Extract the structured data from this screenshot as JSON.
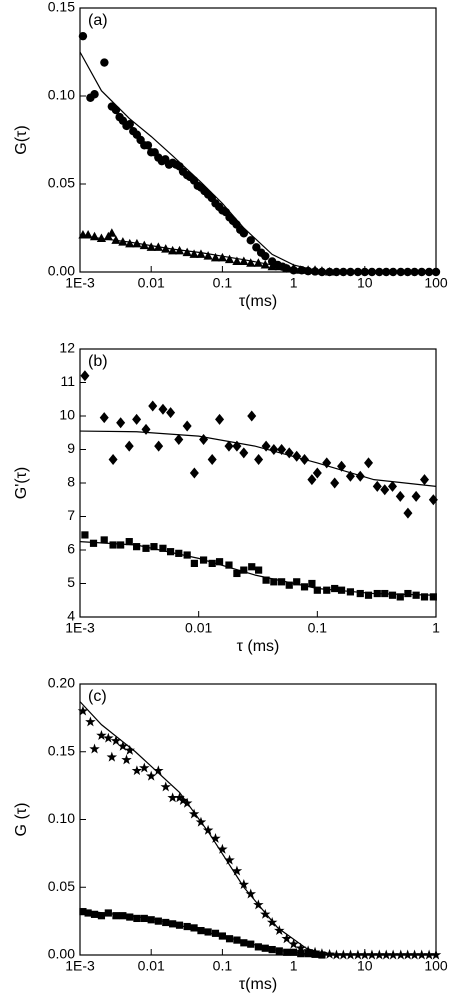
{
  "chart_data": [
    {
      "type": "scatter",
      "annotation": "(a)",
      "xlabel": "τ(ms)",
      "ylabel": "G(τ)",
      "xscale": "log",
      "xlim": [
        0.001,
        100
      ],
      "xticks": [
        {
          "value": 0.001,
          "label": "1E-3"
        },
        0.01,
        0.1,
        1,
        10,
        100
      ],
      "ylim": [
        0,
        0.15
      ],
      "yticks": [
        {
          "value": 0,
          "label": "0.00"
        },
        {
          "value": 0.05,
          "label": "0.05"
        },
        {
          "value": 0.1,
          "label": "0.10"
        },
        {
          "value": 0.15,
          "label": "0.15"
        }
      ],
      "series": [
        {
          "color": "#000000",
          "marker": "circle",
          "x": [
            0.0011,
            0.0014,
            0.0016,
            0.0022,
            0.0028,
            0.0032,
            0.0036,
            0.004,
            0.0045,
            0.005,
            0.0056,
            0.0063,
            0.0071,
            0.008,
            0.009,
            0.01,
            0.0112,
            0.0126,
            0.0141,
            0.0158,
            0.0178,
            0.02,
            0.0224,
            0.025,
            0.028,
            0.032,
            0.035,
            0.04,
            0.045,
            0.05,
            0.056,
            0.063,
            0.071,
            0.08,
            0.09,
            0.1,
            0.112,
            0.126,
            0.141,
            0.158,
            0.178,
            0.2,
            0.25,
            0.3,
            0.35,
            0.4,
            0.5,
            0.6,
            0.7,
            0.8,
            1,
            1.3,
            1.6,
            2,
            2.5,
            3.2,
            4,
            5,
            6.3,
            8,
            10,
            12.6,
            16,
            20,
            25,
            32,
            40,
            50,
            63,
            80,
            100
          ],
          "values": [
            0.134,
            0.099,
            0.101,
            0.119,
            0.094,
            0.092,
            0.088,
            0.086,
            0.083,
            0.084,
            0.08,
            0.078,
            0.075,
            0.072,
            0.072,
            0.068,
            0.068,
            0.065,
            0.063,
            0.064,
            0.061,
            0.062,
            0.061,
            0.06,
            0.057,
            0.055,
            0.054,
            0.052,
            0.049,
            0.048,
            0.046,
            0.044,
            0.042,
            0.039,
            0.037,
            0.035,
            0.034,
            0.031,
            0.029,
            0.027,
            0.024,
            0.022,
            0.018,
            0.014,
            0.011,
            0.009,
            0.006,
            0.004,
            0.003,
            0.002,
            0.001,
            0.001,
            0.0005,
            0.0003,
            0,
            0,
            0,
            0,
            0,
            0,
            0,
            0,
            0,
            0,
            0,
            0,
            0,
            0,
            0,
            0,
            0
          ]
        },
        {
          "color": "#000000",
          "marker": "triangle",
          "x": [
            0.0011,
            0.0013,
            0.0016,
            0.002,
            0.0025,
            0.0028,
            0.0032,
            0.004,
            0.005,
            0.0063,
            0.008,
            0.01,
            0.0126,
            0.016,
            0.02,
            0.025,
            0.032,
            0.04,
            0.05,
            0.063,
            0.08,
            0.1,
            0.126,
            0.16,
            0.2,
            0.25,
            0.32,
            0.4,
            0.5,
            0.63,
            0.8,
            1,
            1.26,
            1.6,
            2,
            2.5,
            3.2
          ],
          "values": [
            0.021,
            0.021,
            0.02,
            0.019,
            0.02,
            0.022,
            0.018,
            0.017,
            0.016,
            0.016,
            0.015,
            0.014,
            0.014,
            0.013,
            0.012,
            0.012,
            0.011,
            0.01,
            0.01,
            0.009,
            0.008,
            0.008,
            0.007,
            0.006,
            0.006,
            0.005,
            0.005,
            0.004,
            0.003,
            0.003,
            0.002,
            0.002,
            0.001,
            0.001,
            0.001,
            0.0005,
            0
          ]
        },
        {
          "color": "#000000",
          "marker": "none",
          "line": true,
          "x": [
            0.001,
            0.002,
            0.005,
            0.01,
            0.02,
            0.05,
            0.1,
            0.2,
            0.5,
            1,
            2,
            5,
            10,
            100
          ],
          "values": [
            0.125,
            0.103,
            0.087,
            0.077,
            0.066,
            0.051,
            0.039,
            0.025,
            0.01,
            0.004,
            0.001,
            0,
            0,
            0
          ]
        },
        {
          "color": "#000000",
          "marker": "none",
          "line": true,
          "x": [
            0.001,
            0.002,
            0.005,
            0.01,
            0.02,
            0.05,
            0.1,
            0.2,
            0.5,
            1,
            2,
            5,
            10,
            100
          ],
          "values": [
            0.021,
            0.019,
            0.017,
            0.015,
            0.013,
            0.011,
            0.009,
            0.007,
            0.004,
            0.002,
            0.001,
            0,
            0,
            0
          ]
        }
      ]
    },
    {
      "type": "scatter",
      "annotation": "(b)",
      "xlabel": "τ (ms)",
      "ylabel": "G'(τ)",
      "xscale": "log",
      "xlim": [
        0.001,
        1
      ],
      "xticks": [
        {
          "value": 0.001,
          "label": "1E-3"
        },
        0.01,
        0.1,
        1
      ],
      "ylim": [
        4,
        12
      ],
      "yticks": [
        4,
        5,
        6,
        7,
        8,
        9,
        10,
        11,
        12
      ],
      "series": [
        {
          "color": "#000000",
          "marker": "diamond",
          "x": [
            0.0011,
            0.0016,
            0.0019,
            0.0022,
            0.0026,
            0.003,
            0.0036,
            0.0041,
            0.0046,
            0.005,
            0.0058,
            0.0068,
            0.008,
            0.0092,
            0.011,
            0.013,
            0.015,
            0.018,
            0.021,
            0.024,
            0.028,
            0.032,
            0.037,
            0.043,
            0.05,
            0.058,
            0.067,
            0.078,
            0.09,
            0.1,
            0.12,
            0.14,
            0.16,
            0.19,
            0.23,
            0.27,
            0.32,
            0.37,
            0.43,
            0.5,
            0.58,
            0.68,
            0.8,
            0.95
          ],
          "values": [
            11.2,
            9.95,
            8.7,
            9.8,
            9.1,
            9.9,
            9.6,
            10.3,
            9.1,
            10.2,
            10.1,
            9.3,
            9.7,
            8.3,
            9.3,
            8.7,
            9.9,
            9.1,
            9.1,
            8.9,
            10,
            8.7,
            9.1,
            9,
            9,
            8.9,
            8.8,
            8.7,
            8.1,
            8.3,
            8.6,
            8,
            8.5,
            8.2,
            8.2,
            8.6,
            7.9,
            7.8,
            7.9,
            7.6,
            7.1,
            7.6,
            8.1,
            7.5
          ]
        },
        {
          "color": "#000000",
          "marker": "square",
          "x": [
            0.0011,
            0.0013,
            0.0016,
            0.0019,
            0.0022,
            0.0026,
            0.003,
            0.0036,
            0.0042,
            0.005,
            0.0058,
            0.0068,
            0.008,
            0.0092,
            0.011,
            0.013,
            0.015,
            0.018,
            0.021,
            0.024,
            0.028,
            0.032,
            0.037,
            0.043,
            0.05,
            0.058,
            0.067,
            0.078,
            0.09,
            0.1,
            0.12,
            0.14,
            0.16,
            0.19,
            0.23,
            0.27,
            0.32,
            0.37,
            0.43,
            0.5,
            0.58,
            0.68,
            0.8,
            0.95
          ],
          "values": [
            6.45,
            6.2,
            6.3,
            6.15,
            6.15,
            6.25,
            6.1,
            6.05,
            6.1,
            6.05,
            5.95,
            5.9,
            5.85,
            5.6,
            5.7,
            5.6,
            5.65,
            5.55,
            5.3,
            5.4,
            5.5,
            5.4,
            5.1,
            5.05,
            5.05,
            4.95,
            5.05,
            4.9,
            5,
            4.8,
            4.8,
            4.85,
            4.8,
            4.75,
            4.7,
            4.65,
            4.7,
            4.7,
            4.65,
            4.6,
            4.7,
            4.65,
            4.6,
            4.6
          ]
        },
        {
          "color": "#000000",
          "marker": "none",
          "line": true,
          "x": [
            0.001,
            0.003,
            0.01,
            0.03,
            0.1,
            0.3,
            1
          ],
          "values": [
            9.55,
            9.53,
            9.4,
            9.1,
            8.6,
            8.1,
            7.9
          ]
        },
        {
          "color": "#000000",
          "marker": "none",
          "line": true,
          "x": [
            0.001,
            0.003,
            0.01,
            0.03,
            0.1,
            0.3,
            1
          ],
          "values": [
            6.25,
            6.15,
            5.75,
            5.25,
            4.85,
            4.7,
            4.65
          ]
        }
      ]
    },
    {
      "type": "scatter",
      "annotation": "(c)",
      "xlabel": "τ(ms)",
      "ylabel": "G (τ)",
      "xscale": "log",
      "xlim": [
        0.001,
        100
      ],
      "xticks": [
        {
          "value": 0.001,
          "label": "1E-3"
        },
        0.01,
        0.1,
        1,
        10,
        100
      ],
      "ylim": [
        0,
        0.2
      ],
      "yticks": [
        {
          "value": 0,
          "label": "0.00"
        },
        {
          "value": 0.05,
          "label": "0.05"
        },
        {
          "value": 0.1,
          "label": "0.10"
        },
        {
          "value": 0.15,
          "label": "0.15"
        },
        {
          "value": 0.2,
          "label": "0.20"
        }
      ],
      "series": [
        {
          "color": "#000000",
          "marker": "star",
          "x": [
            0.0011,
            0.0014,
            0.0016,
            0.002,
            0.0025,
            0.0028,
            0.0032,
            0.004,
            0.0045,
            0.005,
            0.0063,
            0.008,
            0.01,
            0.0126,
            0.016,
            0.02,
            0.025,
            0.028,
            0.032,
            0.04,
            0.05,
            0.063,
            0.08,
            0.1,
            0.126,
            0.16,
            0.2,
            0.25,
            0.32,
            0.4,
            0.5,
            0.63,
            0.8,
            1,
            1.26,
            1.6,
            2,
            2.5,
            3.2,
            4,
            5,
            6.3,
            8,
            10,
            12.6,
            16,
            20,
            25,
            32,
            40,
            50,
            63,
            80,
            100
          ],
          "values": [
            0.18,
            0.172,
            0.152,
            0.162,
            0.16,
            0.146,
            0.158,
            0.154,
            0.144,
            0.151,
            0.136,
            0.138,
            0.132,
            0.136,
            0.124,
            0.116,
            0.116,
            0.114,
            0.112,
            0.104,
            0.098,
            0.092,
            0.086,
            0.078,
            0.07,
            0.062,
            0.052,
            0.045,
            0.037,
            0.03,
            0.024,
            0.018,
            0.012,
            0.008,
            0.005,
            0.003,
            0.002,
            0.001,
            0.0005,
            0,
            0,
            0,
            0,
            0,
            0,
            0,
            0,
            0,
            0,
            0,
            0,
            0,
            0,
            0
          ]
        },
        {
          "color": "#000000",
          "marker": "square",
          "x": [
            0.0011,
            0.0013,
            0.0016,
            0.002,
            0.0025,
            0.0032,
            0.004,
            0.005,
            0.0063,
            0.008,
            0.01,
            0.0126,
            0.016,
            0.02,
            0.025,
            0.032,
            0.04,
            0.05,
            0.063,
            0.08,
            0.1,
            0.126,
            0.16,
            0.2,
            0.25,
            0.32,
            0.4,
            0.5,
            0.63,
            0.8,
            1,
            1.26,
            1.6,
            2,
            2.5
          ],
          "values": [
            0.032,
            0.031,
            0.03,
            0.029,
            0.031,
            0.029,
            0.029,
            0.028,
            0.027,
            0.027,
            0.026,
            0.025,
            0.024,
            0.023,
            0.022,
            0.021,
            0.02,
            0.018,
            0.017,
            0.016,
            0.014,
            0.012,
            0.011,
            0.009,
            0.008,
            0.006,
            0.005,
            0.004,
            0.003,
            0.002,
            0.002,
            0.001,
            0.001,
            0.0005,
            0
          ]
        },
        {
          "color": "#000000",
          "marker": "none",
          "line": true,
          "x": [
            0.001,
            0.002,
            0.006,
            0.025,
            0.065,
            0.2,
            0.6,
            1.5,
            3,
            100
          ],
          "values": [
            0.187,
            0.17,
            0.15,
            0.12,
            0.09,
            0.05,
            0.02,
            0.005,
            0,
            0
          ]
        },
        {
          "color": "#000000",
          "marker": "none",
          "line": true,
          "x": [
            0.001,
            0.01,
            0.1,
            0.5,
            2,
            100
          ],
          "values": [
            0.033,
            0.027,
            0.014,
            0.004,
            0,
            0
          ]
        }
      ]
    }
  ]
}
